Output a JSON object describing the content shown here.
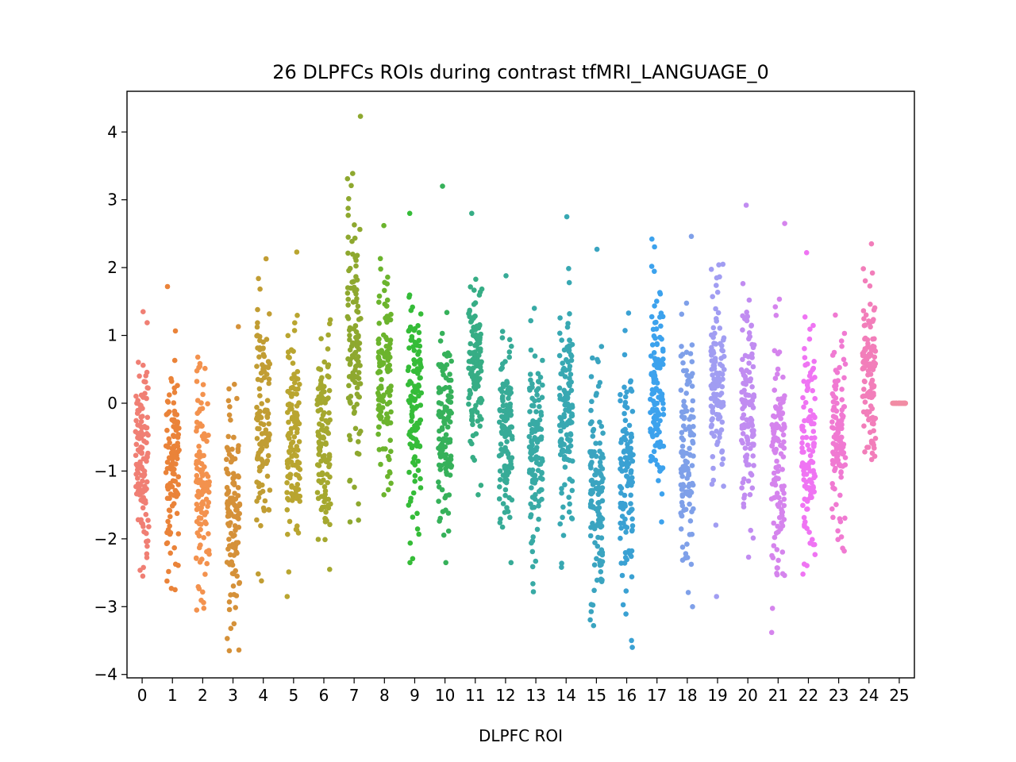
{
  "chart_data": {
    "type": "scatter",
    "subtype": "strip",
    "title": "26 DLPFCs ROIs during contrast tfMRI_LANGUAGE_0",
    "xlabel": "DLPFC ROI",
    "ylabel": "",
    "categories": [
      "0",
      "1",
      "2",
      "3",
      "4",
      "5",
      "6",
      "7",
      "8",
      "9",
      "10",
      "11",
      "12",
      "13",
      "14",
      "15",
      "16",
      "17",
      "18",
      "19",
      "20",
      "21",
      "22",
      "23",
      "24",
      "25"
    ],
    "ylim": [
      -4.05,
      4.6
    ],
    "yticks": [
      -4,
      -3,
      -2,
      -1,
      0,
      1,
      2,
      3,
      4
    ],
    "ytick_labels": [
      "−4",
      "−3",
      "−2",
      "−1",
      "0",
      "1",
      "2",
      "3",
      "4"
    ],
    "grid": false,
    "legend": "none",
    "points_per_category": 120,
    "series": [
      {
        "category": "0",
        "color": "#f07f74",
        "center": -0.75,
        "spread": 0.8,
        "min": -2.55,
        "max": 1.35
      },
      {
        "category": "1",
        "color": "#ea8339",
        "center": -0.9,
        "spread": 0.85,
        "min": -2.75,
        "max": 1.72
      },
      {
        "category": "2",
        "color": "#f3924e",
        "center": -1.05,
        "spread": 0.8,
        "min": -3.05,
        "max": 0.68
      },
      {
        "category": "3",
        "color": "#d59139",
        "center": -1.5,
        "spread": 0.85,
        "min": -3.65,
        "max": 1.13
      },
      {
        "category": "4",
        "color": "#c19d33",
        "center": -0.2,
        "spread": 0.85,
        "min": -2.62,
        "max": 2.13
      },
      {
        "category": "5",
        "color": "#b9a530",
        "center": -0.5,
        "spread": 0.85,
        "min": -2.85,
        "max": 2.23
      },
      {
        "category": "6",
        "color": "#a5a82f",
        "center": -0.55,
        "spread": 0.75,
        "min": -2.45,
        "max": 1.23
      },
      {
        "category": "7",
        "color": "#8ea82f",
        "center": 0.9,
        "spread": 0.8,
        "min": -1.75,
        "max": 4.23
      },
      {
        "category": "8",
        "color": "#6bb42d",
        "center": 0.45,
        "spread": 0.7,
        "min": -1.35,
        "max": 2.62
      },
      {
        "category": "9",
        "color": "#35bc38",
        "center": 0.0,
        "spread": 0.9,
        "min": -2.35,
        "max": 2.8
      },
      {
        "category": "10",
        "color": "#36b15a",
        "center": -0.3,
        "spread": 0.8,
        "min": -2.35,
        "max": 3.2
      },
      {
        "category": "11",
        "color": "#36ad85",
        "center": 0.6,
        "spread": 0.65,
        "min": -1.35,
        "max": 2.8
      },
      {
        "category": "12",
        "color": "#37ab97",
        "center": -0.35,
        "spread": 0.7,
        "min": -2.35,
        "max": 1.88
      },
      {
        "category": "13",
        "color": "#38aaa5",
        "center": -0.6,
        "spread": 0.8,
        "min": -2.78,
        "max": 1.4
      },
      {
        "category": "14",
        "color": "#38a8b2",
        "center": 0.05,
        "spread": 0.75,
        "min": -2.42,
        "max": 2.75
      },
      {
        "category": "15",
        "color": "#3aa4c0",
        "center": -1.3,
        "spread": 0.85,
        "min": -3.28,
        "max": 2.27
      },
      {
        "category": "16",
        "color": "#3aa1d3",
        "center": -1.05,
        "spread": 0.85,
        "min": -3.6,
        "max": 1.33
      },
      {
        "category": "17",
        "color": "#3ca2ed",
        "center": 0.15,
        "spread": 0.75,
        "min": -1.75,
        "max": 2.42
      },
      {
        "category": "18",
        "color": "#7fa0e9",
        "center": -0.7,
        "spread": 0.85,
        "min": -3.0,
        "max": 2.46
      },
      {
        "category": "19",
        "color": "#a19df2",
        "center": 0.3,
        "spread": 0.7,
        "min": -2.85,
        "max": 2.05
      },
      {
        "category": "20",
        "color": "#c18cf1",
        "center": 0.0,
        "spread": 0.8,
        "min": -2.27,
        "max": 2.92
      },
      {
        "category": "21",
        "color": "#d584ed",
        "center": -0.8,
        "spread": 0.85,
        "min": -3.38,
        "max": 2.65
      },
      {
        "category": "22",
        "color": "#ef74f3",
        "center": -0.65,
        "spread": 0.75,
        "min": -2.52,
        "max": 2.22
      },
      {
        "category": "23",
        "color": "#f07ad2",
        "center": -0.45,
        "spread": 0.7,
        "min": -2.18,
        "max": 1.3
      },
      {
        "category": "24",
        "color": "#f27eba",
        "center": 0.5,
        "spread": 0.65,
        "min": -0.83,
        "max": 2.35
      },
      {
        "category": "25",
        "color": "#f18ca4",
        "center": 0.0,
        "spread": 0.0,
        "min": 0.0,
        "max": 0.0
      }
    ]
  }
}
